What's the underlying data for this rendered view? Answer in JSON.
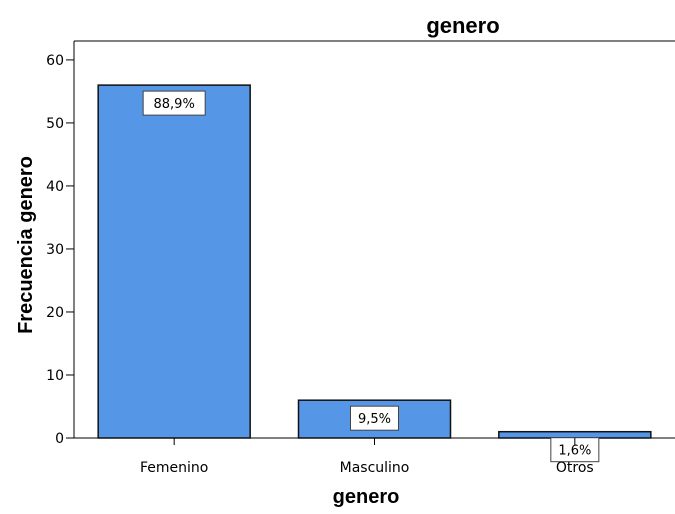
{
  "chart_data": {
    "type": "bar",
    "title": "genero",
    "xlabel": "genero",
    "ylabel": "Frecuencia genero",
    "categories": [
      "Femenino",
      "Masculino",
      "Otros"
    ],
    "values": [
      56,
      6,
      1
    ],
    "data_labels": [
      "88,9%",
      "9,5%",
      "1,6%"
    ],
    "ylim": [
      0,
      63
    ],
    "yticks": [
      0,
      10,
      20,
      30,
      40,
      50,
      60
    ],
    "grid": false,
    "legend": "none",
    "colors": {
      "bar_fill": "#5596e6",
      "bar_stroke": "#111111",
      "axis": "#000000",
      "label_box_fill": "#ffffff"
    }
  }
}
